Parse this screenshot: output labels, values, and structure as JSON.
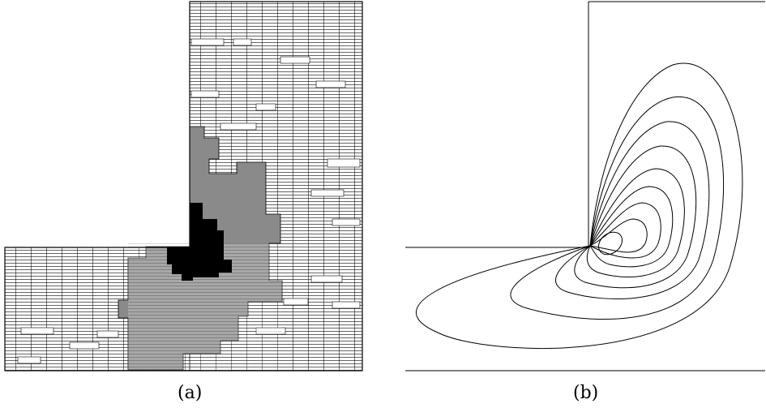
{
  "figure": {
    "panels": [
      {
        "id": "a",
        "caption": "(a)"
      },
      {
        "id": "b",
        "caption": "(b)"
      }
    ],
    "colors": {
      "line": "#000000",
      "refined_region": "#808080",
      "finest_region": "#000000",
      "background": "#ffffff"
    }
  }
}
